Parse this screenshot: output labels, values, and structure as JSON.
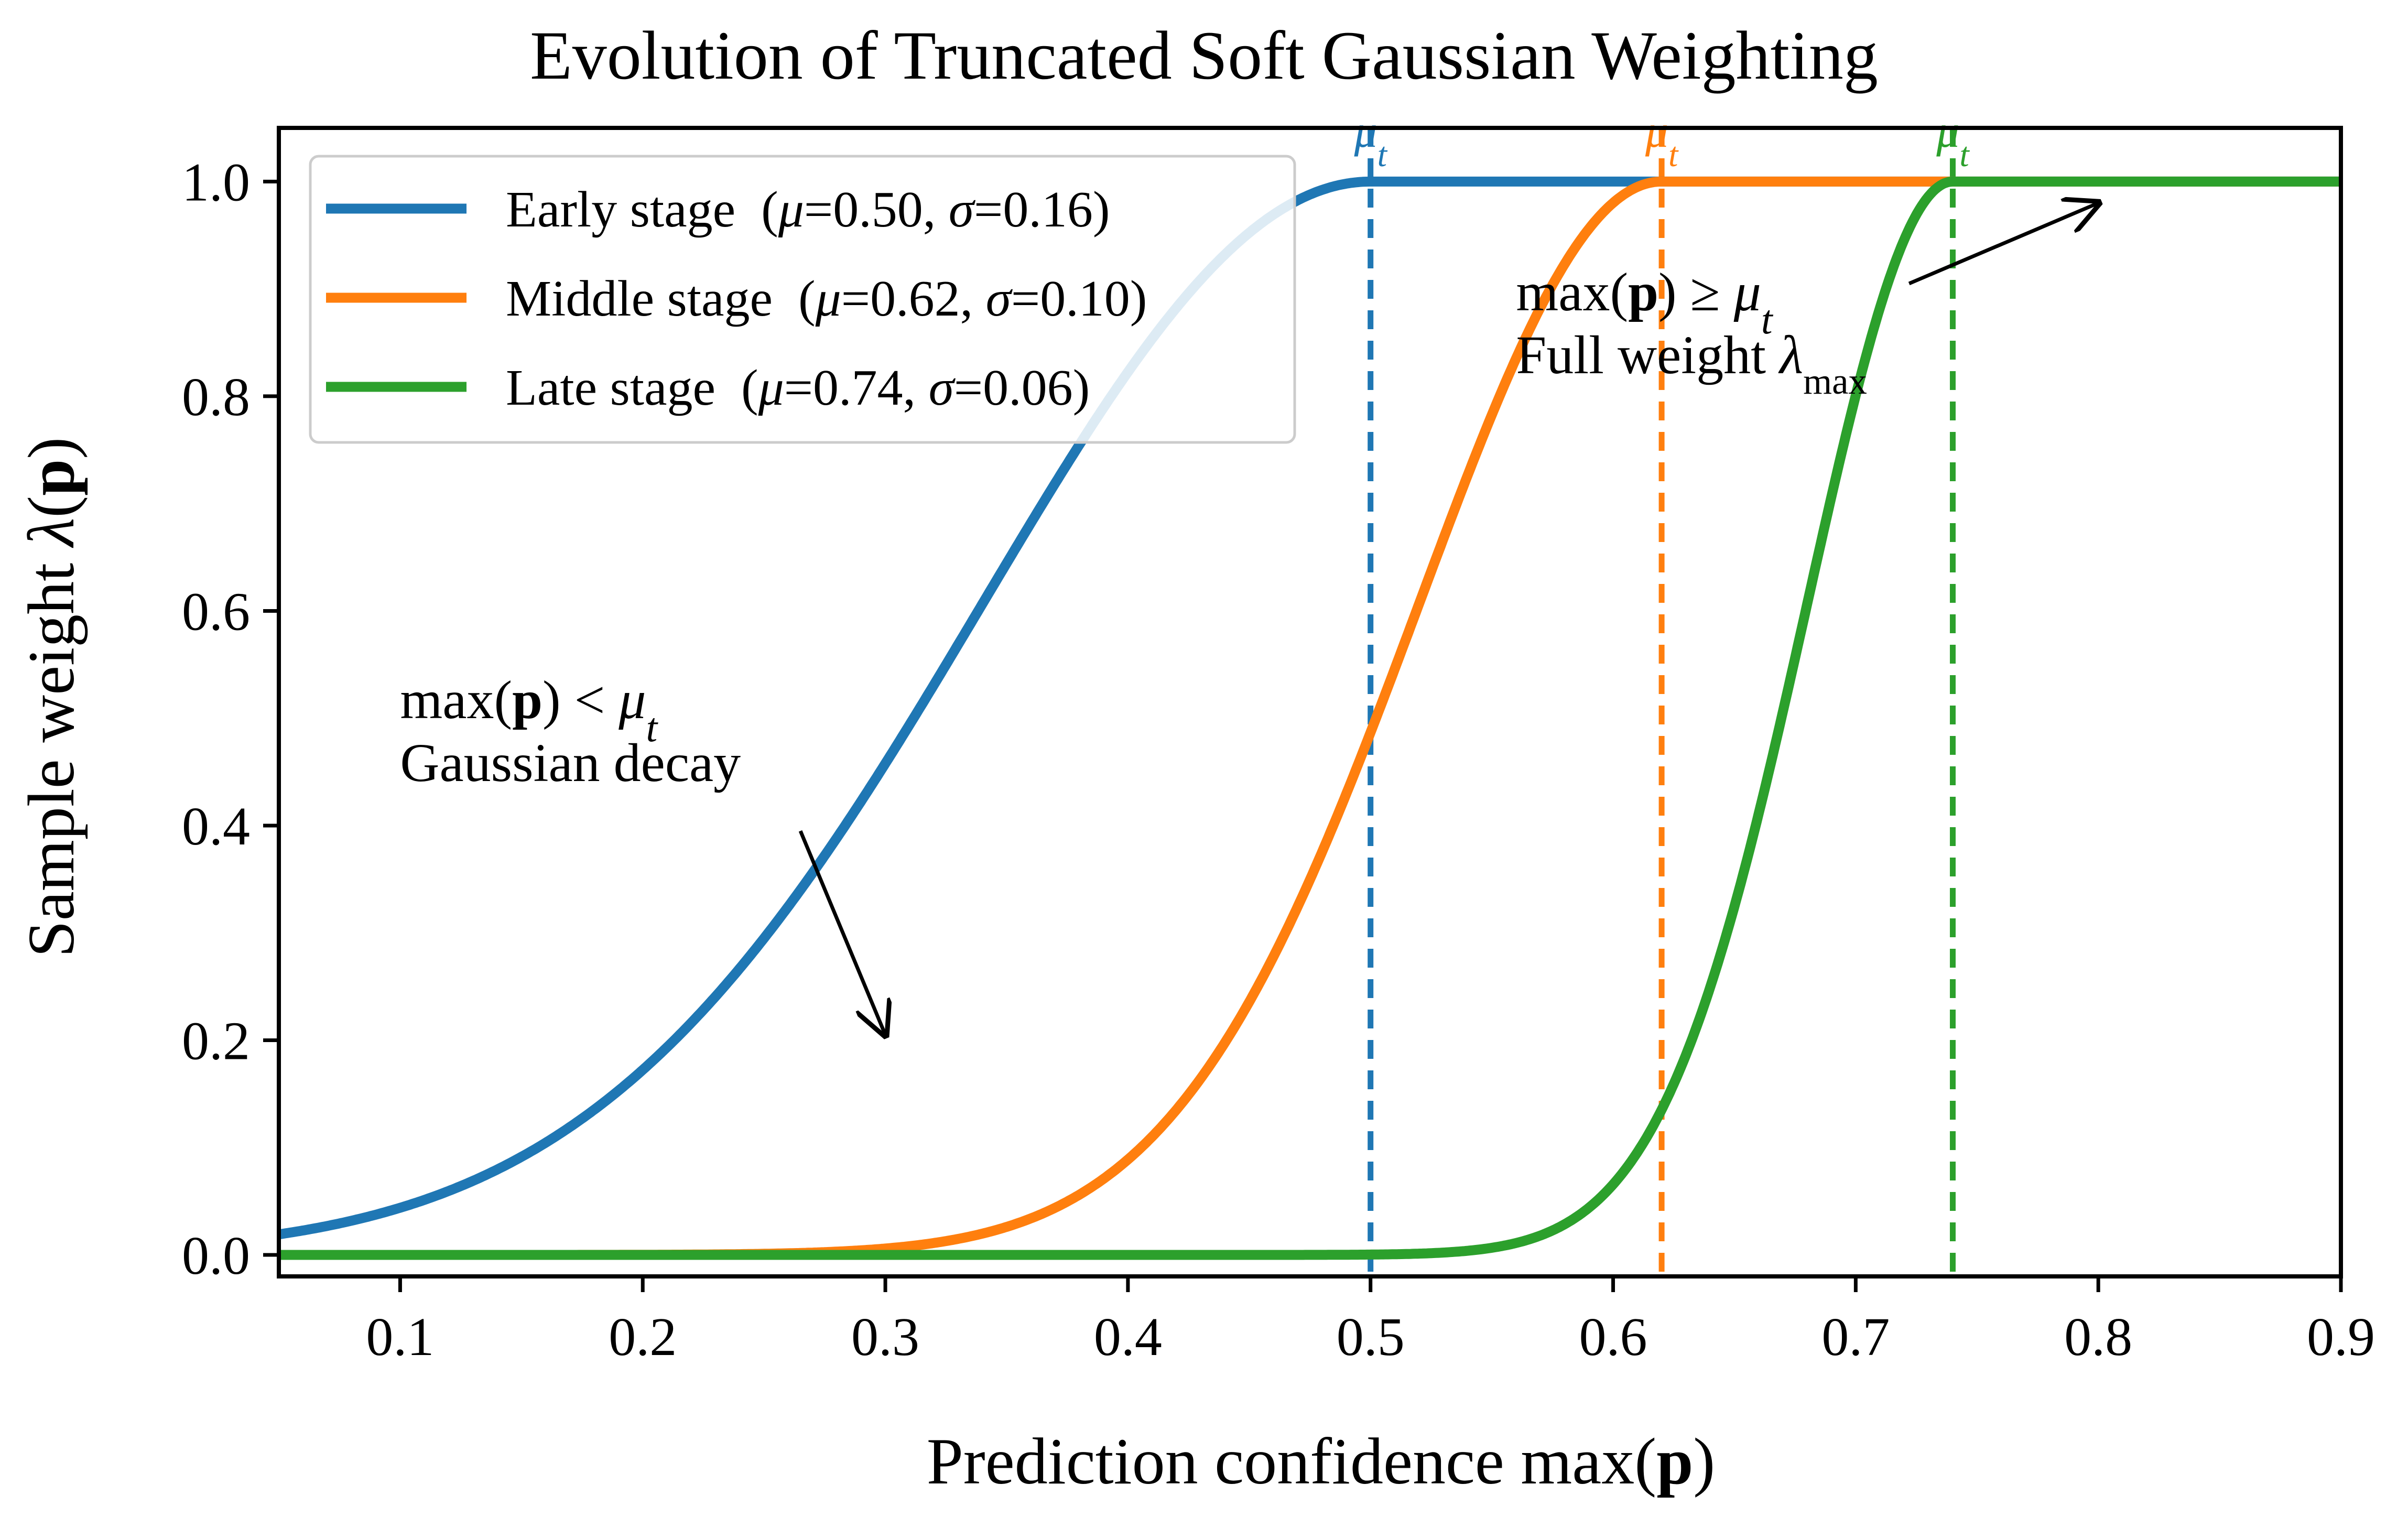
{
  "chart_data": {
    "type": "line",
    "title": "Evolution of Truncated Soft Gaussian Weighting",
    "xlabel": "Prediction confidence  max(p)",
    "xlabel_parts": {
      "prefix": "Prediction confidence  max(",
      "bold": "p",
      "suffix": ")"
    },
    "ylabel": "Sample weight  λ(p)",
    "ylabel_parts": {
      "prefix": "Sample weight  λ(",
      "bold": "p",
      "suffix": ")"
    },
    "xlim": [
      0.05,
      0.9
    ],
    "ylim": [
      -0.02,
      1.05
    ],
    "x_ticks": [
      0.1,
      0.2,
      0.3,
      0.4,
      0.5,
      0.6,
      0.7,
      0.8,
      0.9
    ],
    "x_tick_labels": [
      "0.1",
      "0.2",
      "0.3",
      "0.4",
      "0.5",
      "0.6",
      "0.7",
      "0.8",
      "0.9"
    ],
    "y_ticks": [
      0.0,
      0.2,
      0.4,
      0.6,
      0.8,
      1.0
    ],
    "y_tick_labels": [
      "0.0",
      "0.2",
      "0.4",
      "0.6",
      "0.8",
      "1.0"
    ],
    "grid": false,
    "legend_position": "top-left",
    "series": [
      {
        "name": "Early stage",
        "mu": 0.5,
        "sigma": 0.16,
        "color": "#1f77b4",
        "legend_label": "Early stage  (μ=0.50, σ=0.16)",
        "legend_parts": {
          "stage": "Early stage",
          "mu": "0.50",
          "sigma": "0.16"
        }
      },
      {
        "name": "Middle stage",
        "mu": 0.62,
        "sigma": 0.1,
        "color": "#ff7f0e",
        "legend_label": "Middle stage  (μ=0.62, σ=0.10)",
        "legend_parts": {
          "stage": "Middle stage",
          "mu": "0.62",
          "sigma": "0.10"
        }
      },
      {
        "name": "Late stage",
        "mu": 0.74,
        "sigma": 0.06,
        "color": "#2ca02c",
        "legend_label": "Late stage  (μ=0.74, σ=0.06)",
        "legend_parts": {
          "stage": "Late stage",
          "mu": "0.74",
          "sigma": "0.06"
        }
      }
    ],
    "threshold_label": "μt",
    "annotations": [
      {
        "id": "decay",
        "lines": [
          "max(p) < μt",
          "Gaussian decay"
        ],
        "text_at": [
          0.1,
          0.5
        ],
        "arrow_from": [
          0.265,
          0.395
        ],
        "arrow_to": [
          0.3,
          0.205
        ]
      },
      {
        "id": "full",
        "lines": [
          "max(p) ≥ μt",
          "Full weight  λmax"
        ],
        "text_at": [
          0.56,
          0.88
        ],
        "arrow_from": [
          0.722,
          0.905
        ],
        "arrow_to": [
          0.8,
          0.98
        ]
      }
    ]
  }
}
